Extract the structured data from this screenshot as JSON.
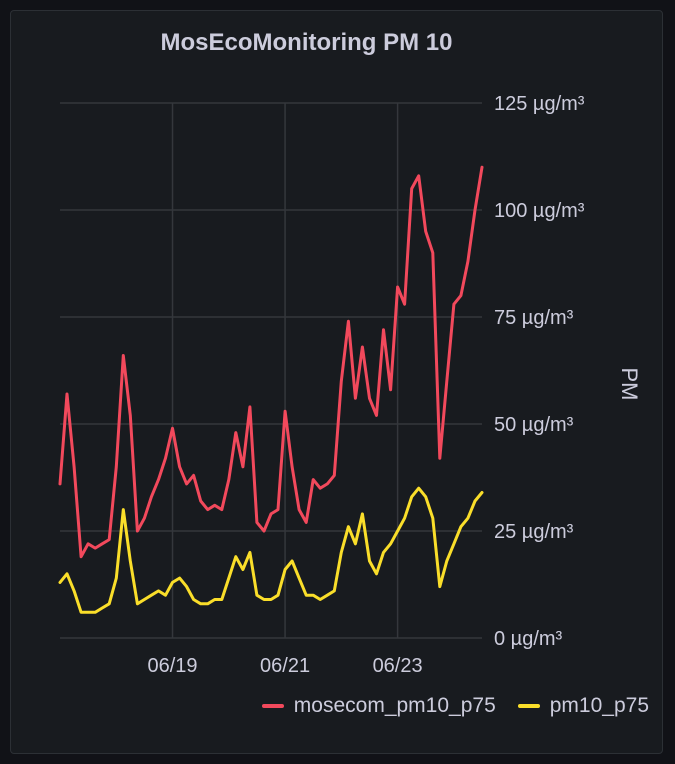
{
  "panel": {
    "title": "MosEcoMonitoring PM 10"
  },
  "chart_data": {
    "type": "line",
    "title": "MosEcoMonitoring PM 10",
    "ylabel": "PM",
    "yunit": "µg/m³",
    "ylim": [
      0,
      125
    ],
    "yticks": [
      "0 µg/m³",
      "25 µg/m³",
      "50 µg/m³",
      "75 µg/m³",
      "100 µg/m³",
      "125 µg/m³"
    ],
    "xticks": [
      "06/19",
      "06/21",
      "06/23"
    ],
    "xlim": [
      "06/17 00:00",
      "06/24 12:00"
    ],
    "grid": true,
    "legend_position": "bottom-right",
    "x": [
      "06/17 00:00",
      "06/17 03:00",
      "06/17 06:00",
      "06/17 09:00",
      "06/17 12:00",
      "06/17 15:00",
      "06/17 18:00",
      "06/17 21:00",
      "06/18 00:00",
      "06/18 03:00",
      "06/18 06:00",
      "06/18 09:00",
      "06/18 12:00",
      "06/18 15:00",
      "06/18 18:00",
      "06/18 21:00",
      "06/19 00:00",
      "06/19 03:00",
      "06/19 06:00",
      "06/19 09:00",
      "06/19 12:00",
      "06/19 15:00",
      "06/19 18:00",
      "06/19 21:00",
      "06/20 00:00",
      "06/20 03:00",
      "06/20 06:00",
      "06/20 09:00",
      "06/20 12:00",
      "06/20 15:00",
      "06/20 18:00",
      "06/20 21:00",
      "06/21 00:00",
      "06/21 03:00",
      "06/21 06:00",
      "06/21 09:00",
      "06/21 12:00",
      "06/21 15:00",
      "06/21 18:00",
      "06/21 21:00",
      "06/22 00:00",
      "06/22 03:00",
      "06/22 06:00",
      "06/22 09:00",
      "06/22 12:00",
      "06/22 15:00",
      "06/22 18:00",
      "06/22 21:00",
      "06/23 00:00",
      "06/23 03:00",
      "06/23 06:00",
      "06/23 09:00",
      "06/23 12:00",
      "06/23 15:00",
      "06/23 18:00",
      "06/23 21:00",
      "06/24 00:00",
      "06/24 03:00",
      "06/24 06:00",
      "06/24 09:00",
      "06/24 12:00"
    ],
    "series": [
      {
        "name": "mosecom_pm10_p75",
        "color": "#f2495c",
        "values": [
          36,
          57,
          40,
          19,
          22,
          21,
          22,
          23,
          40,
          66,
          52,
          25,
          28,
          33,
          37,
          42,
          49,
          40,
          36,
          38,
          32,
          30,
          31,
          30,
          37,
          48,
          40,
          54,
          27,
          25,
          29,
          30,
          53,
          40,
          30,
          27,
          37,
          35,
          36,
          38,
          60,
          74,
          56,
          68,
          56,
          52,
          72,
          58,
          82,
          78,
          105,
          108,
          95,
          90,
          42,
          60,
          78,
          80,
          88,
          100,
          110
        ]
      },
      {
        "name": "pm10_p75",
        "color": "#fade2a",
        "values": [
          13,
          15,
          11,
          6,
          6,
          6,
          7,
          8,
          14,
          30,
          18,
          8,
          9,
          10,
          11,
          10,
          13,
          14,
          12,
          9,
          8,
          8,
          9,
          9,
          14,
          19,
          16,
          20,
          10,
          9,
          9,
          10,
          16,
          18,
          14,
          10,
          10,
          9,
          10,
          11,
          20,
          26,
          22,
          29,
          18,
          15,
          20,
          22,
          25,
          28,
          33,
          35,
          33,
          28,
          12,
          18,
          22,
          26,
          28,
          32,
          34
        ]
      }
    ]
  }
}
